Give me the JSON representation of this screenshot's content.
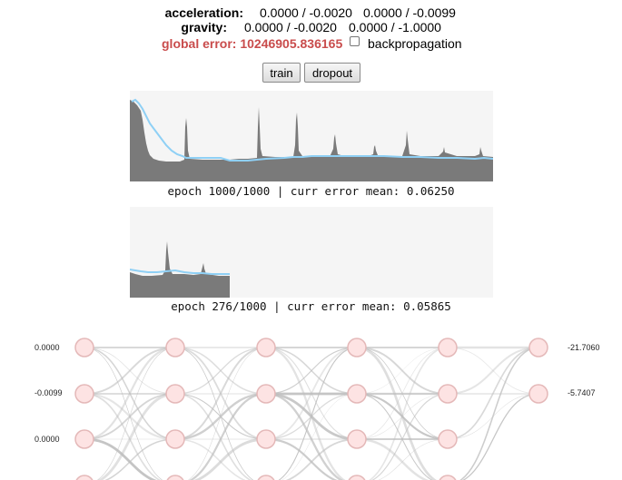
{
  "stats": {
    "acceleration_label": "acceleration:",
    "acceleration_v1": "0.0000 / -0.0020",
    "acceleration_v2": "0.0000 / -0.0099",
    "gravity_label": "gravity:",
    "gravity_v1": "0.0000 / -0.0020",
    "gravity_v2": "0.0000 / -1.0000"
  },
  "global_error": "global error: 10246905.836165",
  "backprop": {
    "label": "backpropagation",
    "checked": false
  },
  "buttons": {
    "train": "train",
    "dropout": "dropout"
  },
  "plots": [
    {
      "caption": "epoch 1000/1000 | curr error mean: 0.06250",
      "epoch": 1000,
      "total_epochs": 1000,
      "error_mean": 0.0625
    },
    {
      "caption": "epoch 276/1000 | curr error mean: 0.05865",
      "epoch": 276,
      "total_epochs": 1000,
      "error_mean": 0.05865
    }
  ],
  "network": {
    "input_values": [
      "0.0000",
      "-0.0099",
      "0.0000"
    ],
    "output_values": [
      "-21.7060",
      "-5.7407"
    ],
    "layer_count": 6,
    "node_color": "#fde3e3",
    "node_stroke": "#e4b8b8",
    "edge_color": "#bdbdbd"
  },
  "colors": {
    "error_red": "#c94c4c",
    "plot_fill": "#7a7a7a",
    "plot_line": "#8fd0f5",
    "plot_bg": "#f5f5f5"
  }
}
